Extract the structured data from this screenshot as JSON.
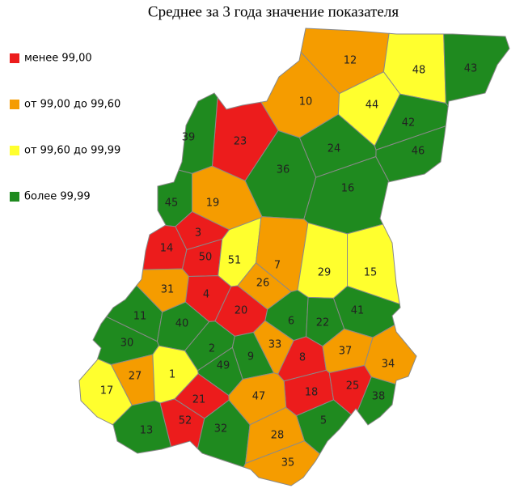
{
  "title": "Среднее за 3 года значение показателя",
  "legend": [
    {
      "label": "менее 99,00",
      "color": "#ec1c1c"
    },
    {
      "label": "от 99,00 до 99,60",
      "color": "#f59c00"
    },
    {
      "label": "от 99,60 до 99,99",
      "color": "#ffff2e"
    },
    {
      "label": "более 99,99",
      "color": "#1f8a1f"
    }
  ],
  "regions": [
    {
      "label": "12",
      "class": 1
    },
    {
      "label": "48",
      "class": 2
    },
    {
      "label": "43",
      "class": 3
    },
    {
      "label": "10",
      "class": 1
    },
    {
      "label": "44",
      "class": 2
    },
    {
      "label": "42",
      "class": 3
    },
    {
      "label": "46",
      "class": 3
    },
    {
      "label": "23",
      "class": 0
    },
    {
      "label": "39",
      "class": 3
    },
    {
      "label": "24",
      "class": 3
    },
    {
      "label": "36",
      "class": 3
    },
    {
      "label": "16",
      "class": 3
    },
    {
      "label": "45",
      "class": 3
    },
    {
      "label": "19",
      "class": 1
    },
    {
      "label": "3",
      "class": 0
    },
    {
      "label": "14",
      "class": 0
    },
    {
      "label": "50",
      "class": 0
    },
    {
      "label": "51",
      "class": 2
    },
    {
      "label": "7",
      "class": 1
    },
    {
      "label": "29",
      "class": 2
    },
    {
      "label": "15",
      "class": 2
    },
    {
      "label": "26",
      "class": 1
    },
    {
      "label": "31",
      "class": 1
    },
    {
      "label": "4",
      "class": 0
    },
    {
      "label": "20",
      "class": 0
    },
    {
      "label": "41",
      "class": 3
    },
    {
      "label": "11",
      "class": 3
    },
    {
      "label": "40",
      "class": 3
    },
    {
      "label": "6",
      "class": 3
    },
    {
      "label": "22",
      "class": 3
    },
    {
      "label": "30",
      "class": 3
    },
    {
      "label": "2",
      "class": 3
    },
    {
      "label": "9",
      "class": 3
    },
    {
      "label": "33",
      "class": 1
    },
    {
      "label": "8",
      "class": 0
    },
    {
      "label": "37",
      "class": 1
    },
    {
      "label": "34",
      "class": 1
    },
    {
      "label": "49",
      "class": 3
    },
    {
      "label": "27",
      "class": 1
    },
    {
      "label": "1",
      "class": 2
    },
    {
      "label": "17",
      "class": 2
    },
    {
      "label": "18",
      "class": 0
    },
    {
      "label": "25",
      "class": 0
    },
    {
      "label": "38",
      "class": 3
    },
    {
      "label": "47",
      "class": 1
    },
    {
      "label": "21",
      "class": 0
    },
    {
      "label": "52",
      "class": 0
    },
    {
      "label": "5",
      "class": 3
    },
    {
      "label": "13",
      "class": 3
    },
    {
      "label": "32",
      "class": 3
    },
    {
      "label": "28",
      "class": 1
    },
    {
      "label": "35",
      "class": 1
    }
  ]
}
